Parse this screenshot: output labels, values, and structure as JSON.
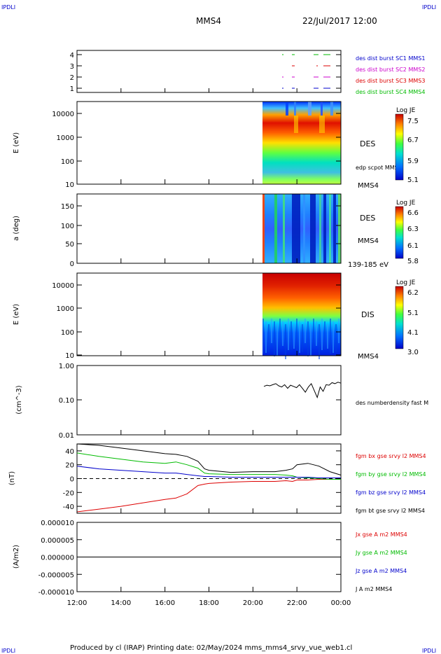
{
  "header": {
    "corner_label": "IPDLI",
    "title": "MMS4",
    "date": "22/Jul/2017 12:00"
  },
  "footer": {
    "text": "Produced by cl (IRAP)   Printing date: 02/May/2024   mms_mms4_srvy_vue_web1.cl"
  },
  "colors": {
    "blue": "#0000cc",
    "magenta": "#cc00cc",
    "red": "#dd0000",
    "green": "#00bb00",
    "black": "#000000"
  },
  "chart_data": [
    {
      "type": "scatter",
      "panel": "burst",
      "yticks": [
        "4",
        "3",
        "2",
        "1"
      ],
      "legend": [
        {
          "label": "des dist burst SC1 MMS1",
          "color": "#0000cc"
        },
        {
          "label": "des dist burst SC2 MMS2",
          "color": "#cc00cc"
        },
        {
          "label": "des dist burst SC3 MMS3",
          "color": "#dd0000"
        },
        {
          "label": "des dist burst SC4 MMS4",
          "color": "#00bb00"
        }
      ]
    },
    {
      "type": "heatmap",
      "panel": "des_energy",
      "ylabel": "E (eV)",
      "yticks": [
        "10000",
        "1000",
        "100",
        "10"
      ],
      "label": "DES",
      "sublabel": "edp scpot MMS4",
      "bottom_label": "MMS4",
      "colorbar": {
        "title": "Log JE",
        "ticks": [
          "7.5",
          "6.7",
          "5.9",
          "5.1"
        ]
      }
    },
    {
      "type": "heatmap",
      "panel": "des_pitch",
      "ylabel": "a (deg)",
      "yticks": [
        "150",
        "100",
        "50",
        "0"
      ],
      "label": "DES",
      "sublabel": "MMS4",
      "bottom_label": "139-185 eV",
      "colorbar": {
        "title": "Log JE",
        "ticks": [
          "6.6",
          "6.3",
          "6.1",
          "5.8"
        ]
      }
    },
    {
      "type": "heatmap",
      "panel": "dis_energy",
      "ylabel": "E (eV)",
      "yticks": [
        "10000",
        "1000",
        "100",
        "10"
      ],
      "label": "DIS",
      "bottom_label": "MMS4",
      "colorbar": {
        "title": "Log JE",
        "ticks": [
          "6.2",
          "5.1",
          "4.1",
          "3.0"
        ]
      }
    },
    {
      "type": "line",
      "panel": "density",
      "ylabel": "(cm^-3)",
      "yticks": [
        "1.00",
        "0.10",
        "0.01"
      ],
      "series": [
        {
          "name": "des numberdensity fast M",
          "color": "#000000"
        }
      ]
    },
    {
      "type": "line",
      "panel": "field",
      "ylabel": "(nT)",
      "yticks": [
        "40",
        "20",
        "0",
        "-20",
        "-40"
      ],
      "ylim": [
        -50,
        50
      ],
      "series": [
        {
          "name": "fgm bx gse srvy l2 MMS4",
          "color": "#dd0000",
          "x": [
            12.0,
            13.0,
            14.0,
            15.0,
            16.0,
            16.5,
            17.0,
            17.5,
            17.8,
            18.0,
            19.0,
            20.0,
            21.0,
            21.5,
            21.8,
            22.0,
            22.5,
            23.0,
            23.5,
            24.0
          ],
          "values": [
            -48,
            -44,
            -40,
            -35,
            -30,
            -28,
            -22,
            -10,
            -8,
            -7,
            -5,
            -4,
            -4,
            -3,
            -4,
            -2,
            -2,
            -1,
            -1,
            -1
          ]
        },
        {
          "name": "fgm by gse srvy l2 MMS4",
          "color": "#00bb00",
          "x": [
            12.0,
            13.0,
            14.0,
            15.0,
            16.0,
            16.5,
            17.0,
            17.5,
            17.8,
            18.0,
            19.0,
            20.0,
            21.0,
            21.5,
            21.8,
            22.0,
            22.5,
            23.0,
            23.5,
            24.0
          ],
          "values": [
            37,
            32,
            28,
            24,
            22,
            24,
            20,
            15,
            8,
            7,
            6,
            6,
            6,
            5,
            4,
            2,
            1,
            0,
            -1,
            -1
          ]
        },
        {
          "name": "fgm bz gse srvy l2 MMS4",
          "color": "#0000cc",
          "x": [
            12.0,
            13.0,
            14.0,
            15.0,
            16.0,
            16.5,
            17.0,
            17.5,
            17.8,
            18.0,
            19.0,
            20.0,
            21.0,
            21.5,
            21.8,
            22.0,
            22.5,
            23.0,
            23.5,
            24.0
          ],
          "values": [
            18,
            14,
            12,
            10,
            8,
            8,
            6,
            4,
            3,
            3,
            2,
            2,
            2,
            2,
            2,
            2,
            2,
            1,
            1,
            1
          ]
        },
        {
          "name": "fgm bt gse srvy l2 MMS4",
          "color": "#000000",
          "x": [
            12.0,
            13.0,
            14.0,
            15.0,
            16.0,
            16.5,
            17.0,
            17.5,
            17.8,
            18.0,
            19.0,
            20.0,
            21.0,
            21.5,
            21.8,
            22.0,
            22.5,
            23.0,
            23.5,
            24.0
          ],
          "values": [
            50,
            48,
            44,
            40,
            36,
            35,
            32,
            25,
            14,
            12,
            9,
            10,
            10,
            12,
            14,
            20,
            22,
            18,
            10,
            5
          ]
        }
      ],
      "reference_line": 0
    },
    {
      "type": "line",
      "panel": "current",
      "ylabel": "(A/m2)",
      "yticks": [
        "0.000010",
        "0.000005",
        "0.000000",
        "-0.000005",
        "-0.000010"
      ],
      "ylim": [
        -1e-05,
        1e-05
      ],
      "series": [
        {
          "name": "Jx gse A m2 MMS4",
          "color": "#dd0000"
        },
        {
          "name": "Jy gse A m2 MMS4",
          "color": "#00bb00"
        },
        {
          "name": "Jz gse A m2 MMS4",
          "color": "#0000cc"
        },
        {
          "name": "J A m2 MMS4",
          "color": "#000000"
        }
      ]
    }
  ],
  "xaxis": {
    "ticks": [
      "12:00",
      "14:00",
      "16:00",
      "18:00",
      "20:00",
      "22:00",
      "00:00"
    ]
  }
}
